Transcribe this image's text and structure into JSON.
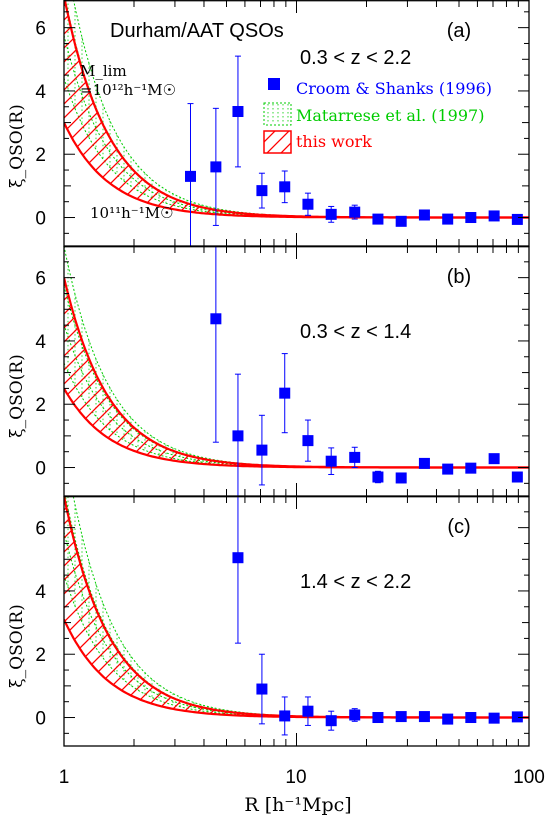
{
  "chart_data": {
    "type": "scatter",
    "x_axis": {
      "label": "R [h⁻¹Mpc]",
      "scale": "log",
      "range": [
        1,
        100
      ],
      "ticks": [
        "1",
        "10",
        "100"
      ]
    },
    "y_axis": {
      "label": "ξ_QSO(R)",
      "range": [
        -0.9,
        7.0
      ],
      "ticks": [
        "0",
        "2",
        "4",
        "6"
      ]
    },
    "annotations": {
      "title": "Durham/AAT QSOs",
      "mlim_label": "M_lim",
      "mlim_value": "=10¹²h⁻¹M☉",
      "m11_label": "10¹¹h⁻¹M☉"
    },
    "legend": {
      "placement": "top-right of panel (a)",
      "entries": [
        {
          "name": "Croom & Shanks (1996)",
          "color": "#0000ff",
          "symbol": "filled-square"
        },
        {
          "name": "Matarrese et al. (1997)",
          "color": "#00cc00",
          "symbol": "dotted-band"
        },
        {
          "name": "this work",
          "color": "#ff0000",
          "symbol": "hatched-band"
        }
      ]
    },
    "panels": [
      {
        "letter": "(a)",
        "zrange": "0.3 < z < 2.2",
        "red_upper_amp": 7.0,
        "red_lower_amp": 3.0,
        "green_upper_amp": 8.5,
        "green_lower_amp": 4.4,
        "points": [
          {
            "x": 3.5,
            "y": 1.3,
            "err": 2.3
          },
          {
            "x": 4.5,
            "y": 1.6,
            "err": 1.85
          },
          {
            "x": 5.6,
            "y": 3.35,
            "err": 1.75
          },
          {
            "x": 7.1,
            "y": 0.85,
            "err": 0.55
          },
          {
            "x": 8.9,
            "y": 0.97,
            "err": 0.5
          },
          {
            "x": 11.2,
            "y": 0.42,
            "err": 0.35
          },
          {
            "x": 14.1,
            "y": 0.1,
            "err": 0.25
          },
          {
            "x": 17.8,
            "y": 0.17,
            "err": 0.22
          },
          {
            "x": 22.4,
            "y": -0.05,
            "err": 0.12
          },
          {
            "x": 28.2,
            "y": -0.12,
            "err": 0.12
          },
          {
            "x": 35.5,
            "y": 0.08,
            "err": 0.1
          },
          {
            "x": 44.7,
            "y": -0.05,
            "err": 0.08
          },
          {
            "x": 56.2,
            "y": 0.0,
            "err": 0.07
          },
          {
            "x": 70.8,
            "y": 0.05,
            "err": 0.07
          },
          {
            "x": 89.1,
            "y": -0.06,
            "err": 0.06
          }
        ]
      },
      {
        "letter": "(b)",
        "zrange": "0.3 < z < 1.4",
        "red_upper_amp": 6.0,
        "red_lower_amp": 2.5,
        "green_upper_amp": 7.0,
        "green_lower_amp": 3.3,
        "points": [
          {
            "x": 4.5,
            "y": 4.7,
            "err": 3.9
          },
          {
            "x": 5.6,
            "y": 1.0,
            "err": 1.95
          },
          {
            "x": 7.1,
            "y": 0.55,
            "err": 1.1
          },
          {
            "x": 8.9,
            "y": 2.35,
            "err": 1.25
          },
          {
            "x": 11.2,
            "y": 0.85,
            "err": 0.65
          },
          {
            "x": 14.1,
            "y": 0.2,
            "err": 0.42
          },
          {
            "x": 17.8,
            "y": 0.32,
            "err": 0.32
          },
          {
            "x": 22.4,
            "y": -0.3,
            "err": 0.18
          },
          {
            "x": 28.2,
            "y": -0.33,
            "err": 0.15
          },
          {
            "x": 35.5,
            "y": 0.13,
            "err": 0.12
          },
          {
            "x": 44.7,
            "y": -0.05,
            "err": 0.1
          },
          {
            "x": 56.2,
            "y": -0.02,
            "err": 0.09
          },
          {
            "x": 70.8,
            "y": 0.28,
            "err": 0.08
          },
          {
            "x": 89.1,
            "y": -0.3,
            "err": 0.07
          }
        ]
      },
      {
        "letter": "(c)",
        "zrange": "1.4 < z < 2.2",
        "red_upper_amp": 7.0,
        "red_lower_amp": 3.1,
        "green_upper_amp": 8.6,
        "green_lower_amp": 4.5,
        "points": [
          {
            "x": 5.6,
            "y": 5.05,
            "err": 2.7
          },
          {
            "x": 7.1,
            "y": 0.9,
            "err": 1.1
          },
          {
            "x": 8.9,
            "y": 0.05,
            "err": 0.6
          },
          {
            "x": 11.2,
            "y": 0.2,
            "err": 0.45
          },
          {
            "x": 14.1,
            "y": -0.1,
            "err": 0.3
          },
          {
            "x": 17.8,
            "y": 0.08,
            "err": 0.2
          },
          {
            "x": 22.4,
            "y": 0.0,
            "err": 0.14
          },
          {
            "x": 28.2,
            "y": 0.03,
            "err": 0.12
          },
          {
            "x": 35.5,
            "y": 0.03,
            "err": 0.1
          },
          {
            "x": 44.7,
            "y": -0.05,
            "err": 0.08
          },
          {
            "x": 56.2,
            "y": 0.0,
            "err": 0.07
          },
          {
            "x": 70.8,
            "y": -0.02,
            "err": 0.06
          },
          {
            "x": 89.1,
            "y": 0.02,
            "err": 0.06
          }
        ]
      }
    ]
  }
}
